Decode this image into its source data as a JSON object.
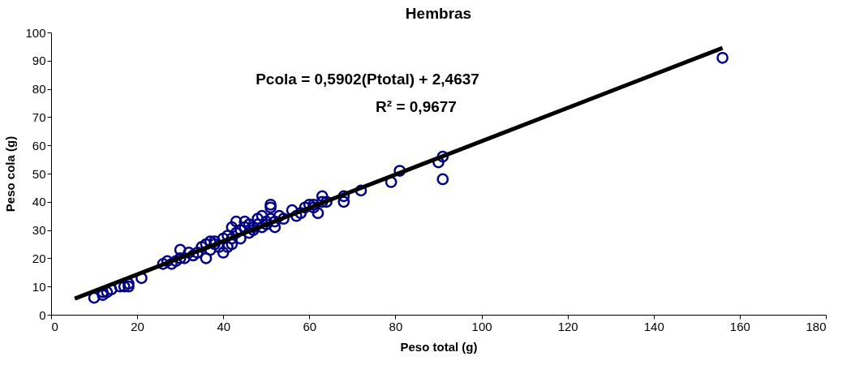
{
  "chart_data": {
    "type": "scatter",
    "title": "Hembras",
    "xlabel": "Peso total (g)",
    "ylabel": "Peso cola (g)",
    "xlim": [
      0,
      180
    ],
    "xticks": [
      0,
      20,
      40,
      60,
      80,
      100,
      120,
      140,
      160,
      180
    ],
    "ylim": [
      0,
      100
    ],
    "yticks": [
      0,
      10,
      20,
      30,
      40,
      50,
      60,
      70,
      80,
      90,
      100
    ],
    "grid": false,
    "marker": "circle",
    "annotations": [
      "Pcola = 0,5902(Ptotal) + 2,4637",
      "R² = 0,9677"
    ],
    "series": [
      {
        "color": "#000080",
        "x": [
          10,
          12,
          12,
          13,
          14,
          16,
          17,
          18,
          18,
          21,
          26,
          27,
          28,
          29,
          30,
          30,
          31,
          32,
          33,
          34,
          35,
          36,
          36,
          37,
          37,
          38,
          38,
          39,
          40,
          40,
          41,
          41,
          42,
          42,
          42,
          43,
          43,
          44,
          44,
          45,
          45,
          46,
          46,
          47,
          47,
          48,
          48,
          49,
          49,
          50,
          50,
          51,
          51,
          51,
          52,
          52,
          53,
          54,
          56,
          57,
          58,
          59,
          60,
          61,
          61,
          62,
          63,
          63,
          64,
          68,
          68,
          72,
          79,
          81,
          90,
          91,
          91,
          156
        ],
        "values": [
          6,
          7,
          8,
          8,
          9,
          10,
          10,
          11,
          10,
          13,
          18,
          19,
          18,
          19,
          20,
          23,
          20,
          22,
          21,
          22,
          24,
          25,
          20,
          26,
          23,
          25,
          26,
          24,
          27,
          22,
          28,
          24,
          27,
          31,
          25,
          33,
          29,
          30,
          27,
          33,
          31,
          29,
          32,
          30,
          31,
          34,
          32,
          35,
          31,
          33,
          32,
          39,
          38,
          34,
          31,
          33,
          35,
          34,
          37,
          35,
          36,
          38,
          39,
          38,
          39,
          36,
          42,
          40,
          40,
          42,
          40,
          44,
          47,
          51,
          54,
          56,
          48,
          91
        ]
      },
      {
        "type": "line",
        "color": "#000000",
        "line_style": "solid",
        "marker": "none",
        "x": [
          5.5,
          156
        ],
        "values": [
          5.7,
          94.5
        ]
      }
    ]
  }
}
